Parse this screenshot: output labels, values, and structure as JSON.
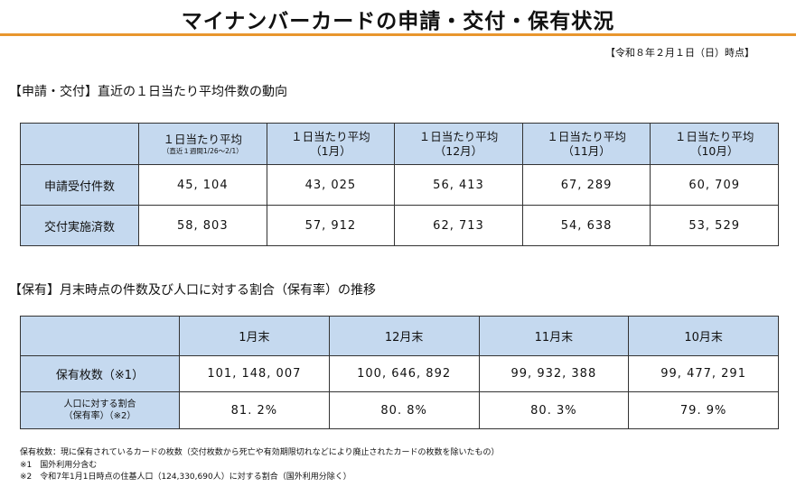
{
  "title": "マイナンバーカードの申請・交付・保有状況",
  "as_of": "【令和８年２月１日（日）時点】",
  "application_section": {
    "heading": "【申請・交付】直近の１日当たり平均件数の動向",
    "columns": [
      {
        "label": "１日当たり平均",
        "sub": "（直近１週間1/26～2/1）"
      },
      {
        "label": "１日当たり平均",
        "sub": "（1月）"
      },
      {
        "label": "１日当たり平均",
        "sub": "（12月）"
      },
      {
        "label": "１日当たり平均",
        "sub": "（11月）"
      },
      {
        "label": "１日当たり平均",
        "sub": "（10月）"
      }
    ],
    "rows": [
      {
        "label": "申請受付件数",
        "values": [
          "45, 104",
          "43, 025",
          "56, 413",
          "67, 289",
          "60, 709"
        ]
      },
      {
        "label": "交付実施済数",
        "values": [
          "58, 803",
          "57, 912",
          "62, 713",
          "54, 638",
          "53, 529"
        ]
      }
    ]
  },
  "holding_section": {
    "heading": "【保有】月末時点の件数及び人口に対する割合（保有率）の推移",
    "columns": [
      "1月末",
      "12月末",
      "11月末",
      "10月末"
    ],
    "rows": [
      {
        "label": "保有枚数（※1）",
        "values": [
          "101, 148, 007",
          "100, 646, 892",
          "99, 932, 388",
          "99, 477, 291"
        ]
      },
      {
        "label_line1": "人口に対する割合",
        "label_line2": "（保有率）（※2）",
        "values": [
          "81. 2%",
          "80. 8%",
          "80. 3%",
          "79. 9%"
        ]
      }
    ]
  },
  "notes": [
    "保有枚数：現に保有されているカードの枚数（交付枚数から死亡や有効期限切れなどにより廃止されたカードの枚数を除いたもの）",
    "※1　国外利用分含む",
    "※2　令和7年1月1日時点の住基人口（124,330,690人）に対する割合（国外利用分除く）"
  ],
  "colors": {
    "header_fill": "#c5d9ef",
    "title_rule": "#e8962e"
  }
}
